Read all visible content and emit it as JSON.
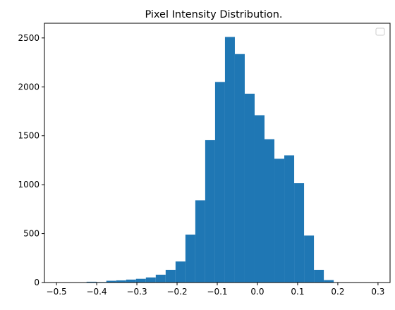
{
  "chart_data": {
    "type": "bar",
    "title": "Pixel Intensity Distribution.",
    "xlabel": "",
    "ylabel": "",
    "xlim": [
      -0.53,
      0.33
    ],
    "ylim": [
      0,
      2650
    ],
    "x_ticks": [
      -0.5,
      -0.4,
      -0.3,
      -0.2,
      -0.1,
      0.0,
      0.1,
      0.2,
      0.3
    ],
    "x_tick_labels": [
      "−0.5",
      "−0.4",
      "−0.3",
      "−0.2",
      "−0.1",
      "0.0",
      "0.1",
      "0.2",
      "0.3"
    ],
    "y_ticks": [
      0,
      500,
      1000,
      1500,
      2000,
      2500
    ],
    "y_tick_labels": [
      "0",
      "500",
      "1000",
      "1500",
      "2000",
      "2500"
    ],
    "bin_width": 0.0246,
    "bin_edges_start": -0.4252,
    "values": [
      8,
      5,
      18,
      22,
      30,
      38,
      52,
      80,
      130,
      215,
      490,
      840,
      1455,
      2050,
      2510,
      2335,
      1930,
      1710,
      1465,
      1265,
      1300,
      1015,
      480,
      130,
      25
    ],
    "bar_color": "#1f77b4",
    "grid": false,
    "legend": {
      "placement": "top-right",
      "entries": []
    }
  }
}
